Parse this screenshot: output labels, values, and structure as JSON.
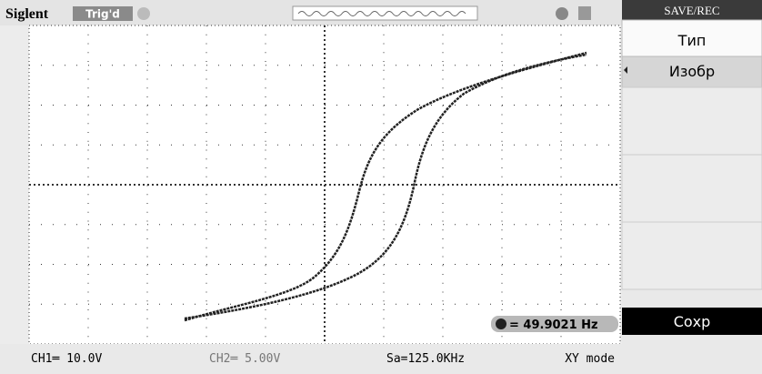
{
  "header": {
    "brand": "Siglent",
    "status": "Trig'd"
  },
  "menu": {
    "title": "SAVE/REC",
    "items": [
      "Тип",
      "Изобр",
      "Сохр"
    ]
  },
  "measurement": {
    "frequency": "= 49.9021 Hz"
  },
  "footer": {
    "ch1": "CH1═ 10.0V",
    "ch2": "CH2═ 5.00V",
    "sample_rate": "Sa=125.0KHz",
    "mode": "XY mode"
  }
}
